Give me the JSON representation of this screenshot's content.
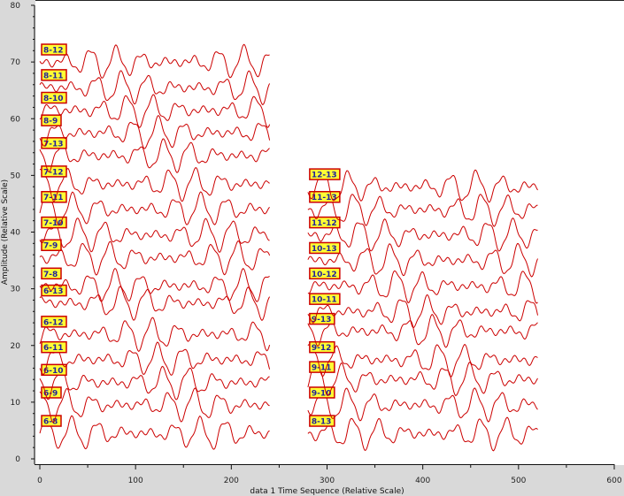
{
  "chart_data": {
    "type": "line",
    "xlabel": "data 1 Time Sequence (Relative Scale)",
    "ylabel": "Amplitude (Relative Scale)",
    "xlim": [
      0,
      600
    ],
    "ylim": [
      0,
      80
    ],
    "x_ticks": [
      "0",
      "100",
      "200",
      "300",
      "400",
      "500",
      "600"
    ],
    "y_ticks": [
      "0",
      "10",
      "20",
      "30",
      "40",
      "50",
      "60",
      "70",
      "80"
    ],
    "grid": false,
    "color": "#cc0000",
    "tag_fill": "#ffff33",
    "series": [
      {
        "name": "6-8",
        "x_range": [
          0,
          240
        ],
        "baseline": 4.5
      },
      {
        "name": "6-9",
        "x_range": [
          0,
          240
        ],
        "baseline": 9.5
      },
      {
        "name": "6-10",
        "x_range": [
          0,
          240
        ],
        "baseline": 13.5
      },
      {
        "name": "6-11",
        "x_range": [
          0,
          240
        ],
        "baseline": 17.5
      },
      {
        "name": "6-12",
        "x_range": [
          0,
          240
        ],
        "baseline": 22
      },
      {
        "name": "6-13",
        "x_range": [
          0,
          240
        ],
        "baseline": 27.5
      },
      {
        "name": "7-8",
        "x_range": [
          0,
          240
        ],
        "baseline": 30.5
      },
      {
        "name": "7-9",
        "x_range": [
          0,
          240
        ],
        "baseline": 35.5
      },
      {
        "name": "7-10",
        "x_range": [
          0,
          240
        ],
        "baseline": 39.5
      },
      {
        "name": "7-11",
        "x_range": [
          0,
          240
        ],
        "baseline": 44
      },
      {
        "name": "7-12",
        "x_range": [
          0,
          240
        ],
        "baseline": 48.5
      },
      {
        "name": "7-13",
        "x_range": [
          0,
          240
        ],
        "baseline": 53.5
      },
      {
        "name": "8-9",
        "x_range": [
          0,
          240
        ],
        "baseline": 57.5
      },
      {
        "name": "8-10",
        "x_range": [
          0,
          240
        ],
        "baseline": 61.5
      },
      {
        "name": "8-11",
        "x_range": [
          0,
          240
        ],
        "baseline": 65.5
      },
      {
        "name": "8-12",
        "x_range": [
          0,
          240
        ],
        "baseline": 70
      },
      {
        "name": "8-13",
        "x_range": [
          280,
          520
        ],
        "baseline": 4.5
      },
      {
        "name": "9-10",
        "x_range": [
          280,
          520
        ],
        "baseline": 9.5
      },
      {
        "name": "9-11",
        "x_range": [
          280,
          520
        ],
        "baseline": 14
      },
      {
        "name": "9-12",
        "x_range": [
          280,
          520
        ],
        "baseline": 17.5
      },
      {
        "name": "9-13",
        "x_range": [
          280,
          520
        ],
        "baseline": 22.5
      },
      {
        "name": "10-11",
        "x_range": [
          280,
          520
        ],
        "baseline": 26
      },
      {
        "name": "10-12",
        "x_range": [
          280,
          520
        ],
        "baseline": 30.5
      },
      {
        "name": "10-13",
        "x_range": [
          280,
          520
        ],
        "baseline": 35
      },
      {
        "name": "11-12",
        "x_range": [
          280,
          520
        ],
        "baseline": 39.5
      },
      {
        "name": "11-13",
        "x_range": [
          280,
          520
        ],
        "baseline": 44
      },
      {
        "name": "12-13",
        "x_range": [
          280,
          520
        ],
        "baseline": 48
      }
    ]
  }
}
